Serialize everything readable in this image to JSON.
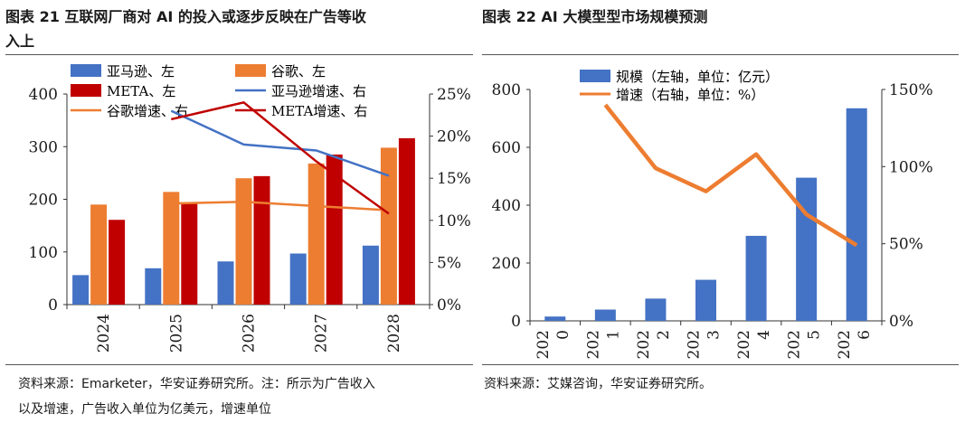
{
  "left_panel": {
    "title_line1": "图表 21 互联网厂商对 AI 的投入或逐步反映在广告等收",
    "title_line2": "入上",
    "source_line1": "资料来源：Emarketer，华安证券研究所。注：所示为广告收入",
    "source_line2": "以及增速，广告收入单位为亿美元，增速单位"
  },
  "right_panel": {
    "title": "图表 22 AI 大模型型市场规模预测",
    "source": "资料来源：艾媒咨询，华安证券研究所。"
  },
  "chart_data": [
    {
      "type": "bar",
      "categories": [
        "2024",
        "2025",
        "2026",
        "2027",
        "2028"
      ],
      "series": [
        {
          "name": "亚马逊、左",
          "kind": "bar",
          "axis": "left",
          "color": "#4472C4",
          "values": [
            56,
            69,
            82,
            97,
            112
          ]
        },
        {
          "name": "谷歌、左",
          "kind": "bar",
          "axis": "left",
          "color": "#ED7D31",
          "values": [
            190,
            214,
            240,
            268,
            298
          ]
        },
        {
          "name": "META、左",
          "kind": "bar",
          "axis": "left",
          "color": "#C00000",
          "values": [
            161,
            192,
            244,
            285,
            316
          ]
        },
        {
          "name": "亚马逊增速、右",
          "kind": "line",
          "axis": "right",
          "color": "#4472C4",
          "values": [
            null,
            23,
            19,
            18.3,
            15.3
          ]
        },
        {
          "name": "谷歌增速、右",
          "kind": "line",
          "axis": "right",
          "color": "#ED7D31",
          "values": [
            null,
            12,
            12.2,
            11.7,
            11.2
          ]
        },
        {
          "name": "META增速、右",
          "kind": "line",
          "axis": "right",
          "color": "#C00000",
          "values": [
            null,
            22,
            24,
            17,
            10.8
          ]
        }
      ],
      "ylim": [
        0,
        400
      ],
      "yticks": [
        "0",
        "100",
        "200",
        "300",
        "400"
      ],
      "y2lim": [
        0,
        25
      ],
      "y2ticks": [
        "0%",
        "5%",
        "10%",
        "15%",
        "20%",
        "25%"
      ],
      "legend_placement": "top",
      "legend": {
        "amazon": "亚马逊、左",
        "google": "谷歌、左",
        "meta": "META、左",
        "amazon_growth": "亚马逊增速、右",
        "google_growth": "谷歌增速、右",
        "meta_growth": "META增速、右"
      }
    },
    {
      "type": "bar",
      "categories": [
        "2020",
        "2021",
        "2022",
        "2023",
        "2024",
        "2025",
        "2026"
      ],
      "category_labels": [
        [
          "202",
          "0"
        ],
        [
          "202",
          "1"
        ],
        [
          "202",
          "2"
        ],
        [
          "202",
          "3"
        ],
        [
          "202",
          "4"
        ],
        [
          "202",
          "5"
        ],
        [
          "202",
          "6"
        ]
      ],
      "series": [
        {
          "name": "规模（左轴，单位：亿元）",
          "kind": "bar",
          "axis": "left",
          "color": "#4472C4",
          "values": [
            15,
            39,
            77,
            142,
            294,
            495,
            735
          ]
        },
        {
          "name": "增速（右轴，单位：%）",
          "kind": "line",
          "axis": "right",
          "color": "#ED7D31",
          "values": [
            null,
            140,
            99,
            84,
            108,
            69,
            49
          ]
        }
      ],
      "ylim": [
        0,
        800
      ],
      "yticks": [
        "0",
        "200",
        "400",
        "600",
        "800"
      ],
      "y2lim": [
        0,
        150
      ],
      "y2ticks": [
        "0%",
        "50%",
        "100%",
        "150%"
      ],
      "legend_placement": "top",
      "legend": {
        "scale": "规模（左轴，单位：亿元）",
        "growth": "增速（右轴，单位：%）"
      }
    }
  ]
}
